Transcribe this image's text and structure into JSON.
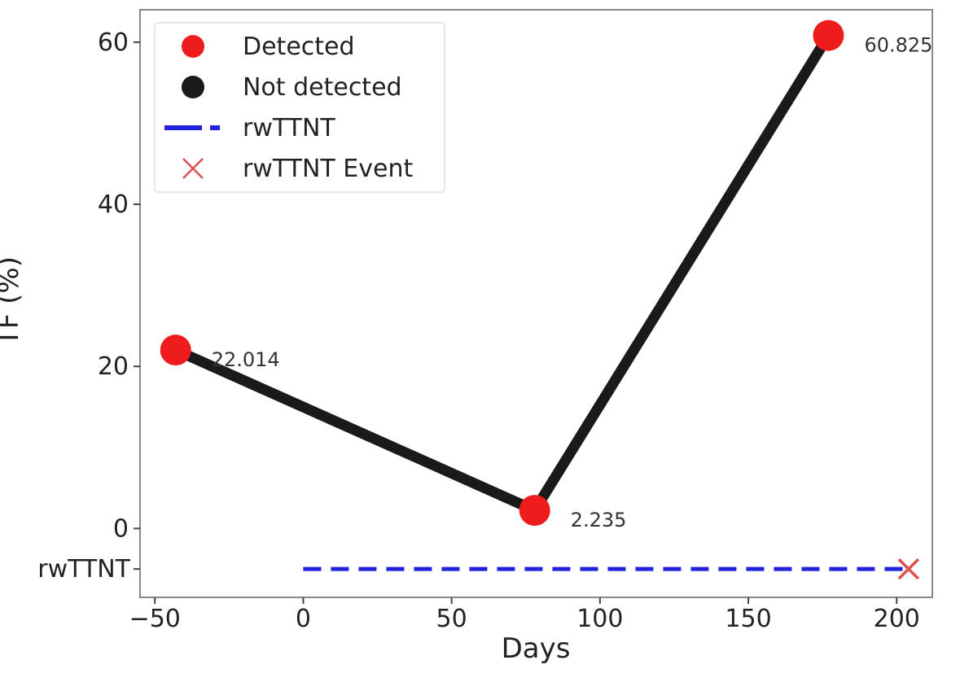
{
  "chart_data": {
    "type": "line",
    "xlabel": "Days",
    "ylabel": "TF (%)",
    "xlim": [
      -55,
      212
    ],
    "ylim": [
      -8.5,
      64
    ],
    "xticks": [
      -50,
      0,
      50,
      100,
      150,
      200
    ],
    "xtick_labels": [
      "−50",
      "0",
      "50",
      "100",
      "150",
      "200"
    ],
    "yticks": [
      0,
      20,
      40,
      60
    ],
    "ytick_labels": [
      "0",
      "20",
      "40",
      "60"
    ],
    "extra_ytick": {
      "value": -5,
      "label": "rwTTNT"
    },
    "grid": false,
    "legend_position": "top-left",
    "series": [
      {
        "name": "Detected",
        "role": "tf-line",
        "color": "#1a1a1a",
        "marker_color": "#ee1c1c",
        "points": [
          {
            "x": -43,
            "y": 22.014,
            "label": "22.014",
            "status": "Detected"
          },
          {
            "x": 78,
            "y": 2.235,
            "label": "2.235",
            "status": "Detected"
          },
          {
            "x": 177,
            "y": 60.825,
            "label": "60.825",
            "status": "Detected"
          }
        ]
      },
      {
        "name": "rwTTNT",
        "role": "rwttnt-line",
        "color": "#2222dd",
        "style": "dashed",
        "x": [
          0,
          204
        ],
        "y": [
          -5,
          -5
        ]
      },
      {
        "name": "rwTTNT Event",
        "role": "event-marker",
        "color": "#d9534f",
        "marker": "x",
        "x": 204,
        "y": -5
      }
    ],
    "legend": [
      {
        "label": "Detected",
        "kind": "dot",
        "color": "#ee1c1c"
      },
      {
        "label": "Not detected",
        "kind": "dot",
        "color": "#1a1a1a"
      },
      {
        "label": "rwTTNT",
        "kind": "dash",
        "color": "#2222dd"
      },
      {
        "label": "rwTTNT Event",
        "kind": "x",
        "color": "#d9534f"
      }
    ]
  }
}
